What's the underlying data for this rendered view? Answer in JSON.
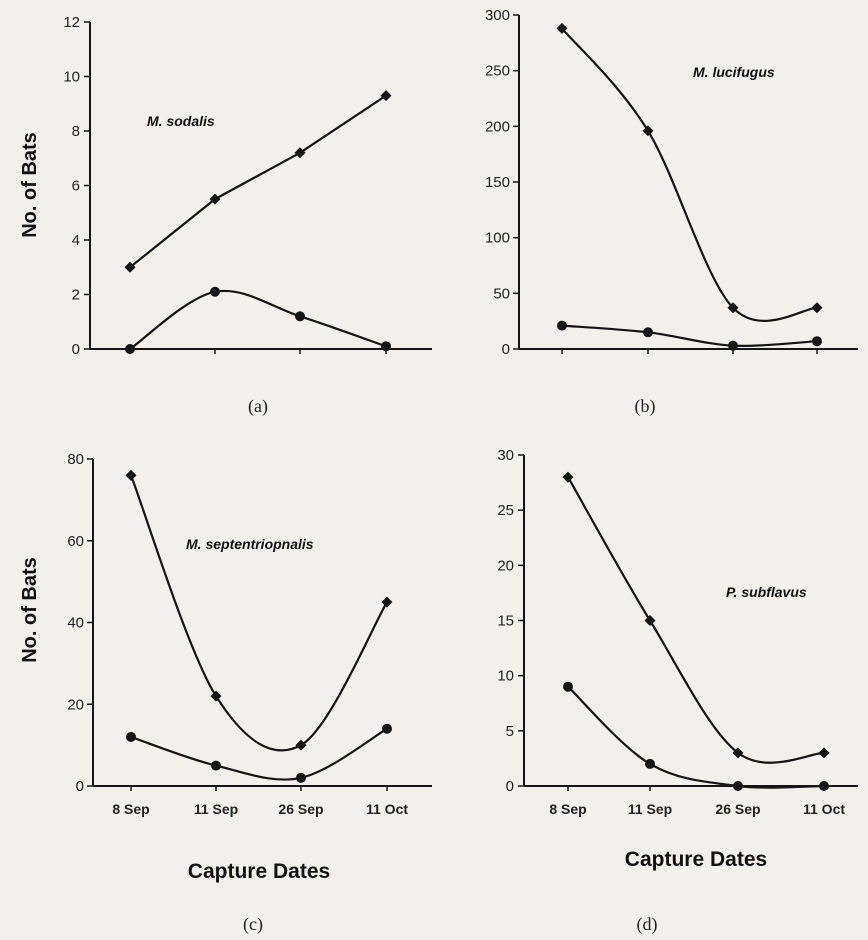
{
  "colors": {
    "background": "#f1f0ec",
    "ink": "#151515"
  },
  "chart_data": [
    {
      "type": "line",
      "panel": "(a)",
      "annotation": "M. sodalis",
      "ylabel": "No. of Bats",
      "xlabel": "",
      "categories": [
        "8 Sep",
        "11 Sep",
        "26 Sep",
        "11 Oct"
      ],
      "show_x_tick_labels": false,
      "ylim": [
        0,
        12
      ],
      "yticks": [
        0,
        2,
        4,
        6,
        8,
        10,
        12
      ],
      "series": [
        {
          "marker": "diamond",
          "values": [
            3,
            5.5,
            7.2,
            9.3
          ]
        },
        {
          "marker": "circle",
          "values": [
            0,
            2.1,
            1.2,
            0.1
          ]
        }
      ]
    },
    {
      "type": "line",
      "panel": "(b)",
      "annotation": "M. lucifugus",
      "ylabel": "",
      "xlabel": "",
      "categories": [
        "8 Sep",
        "11 Sep",
        "26 Sep",
        "11 Oct"
      ],
      "show_x_tick_labels": false,
      "ylim": [
        0,
        300
      ],
      "yticks": [
        0,
        50,
        100,
        150,
        200,
        250,
        300
      ],
      "series": [
        {
          "marker": "diamond",
          "values": [
            288,
            196,
            37,
            37
          ]
        },
        {
          "marker": "circle",
          "values": [
            21,
            15,
            3,
            7
          ]
        }
      ]
    },
    {
      "type": "line",
      "panel": "(c)",
      "annotation": "M. septentriopnalis",
      "ylabel": "No. of Bats",
      "xlabel": "Capture Dates",
      "categories": [
        "8 Sep",
        "11 Sep",
        "26 Sep",
        "11 Oct"
      ],
      "show_x_tick_labels": true,
      "ylim": [
        0,
        80
      ],
      "yticks": [
        0,
        20,
        40,
        60,
        80
      ],
      "series": [
        {
          "marker": "diamond",
          "values": [
            76,
            22,
            10,
            45
          ]
        },
        {
          "marker": "circle",
          "values": [
            12,
            5,
            2,
            14
          ]
        }
      ]
    },
    {
      "type": "line",
      "panel": "(d)",
      "annotation": "P. subflavus",
      "ylabel": "",
      "xlabel": "Capture Dates",
      "categories": [
        "8 Sep",
        "11 Sep",
        "26 Sep",
        "11 Oct"
      ],
      "show_x_tick_labels": true,
      "ylim": [
        0,
        30
      ],
      "yticks": [
        0,
        5,
        10,
        15,
        20,
        25,
        30
      ],
      "series": [
        {
          "marker": "diamond",
          "values": [
            28,
            15,
            3,
            3
          ]
        },
        {
          "marker": "circle",
          "values": [
            9,
            2,
            0,
            0
          ]
        }
      ]
    }
  ]
}
